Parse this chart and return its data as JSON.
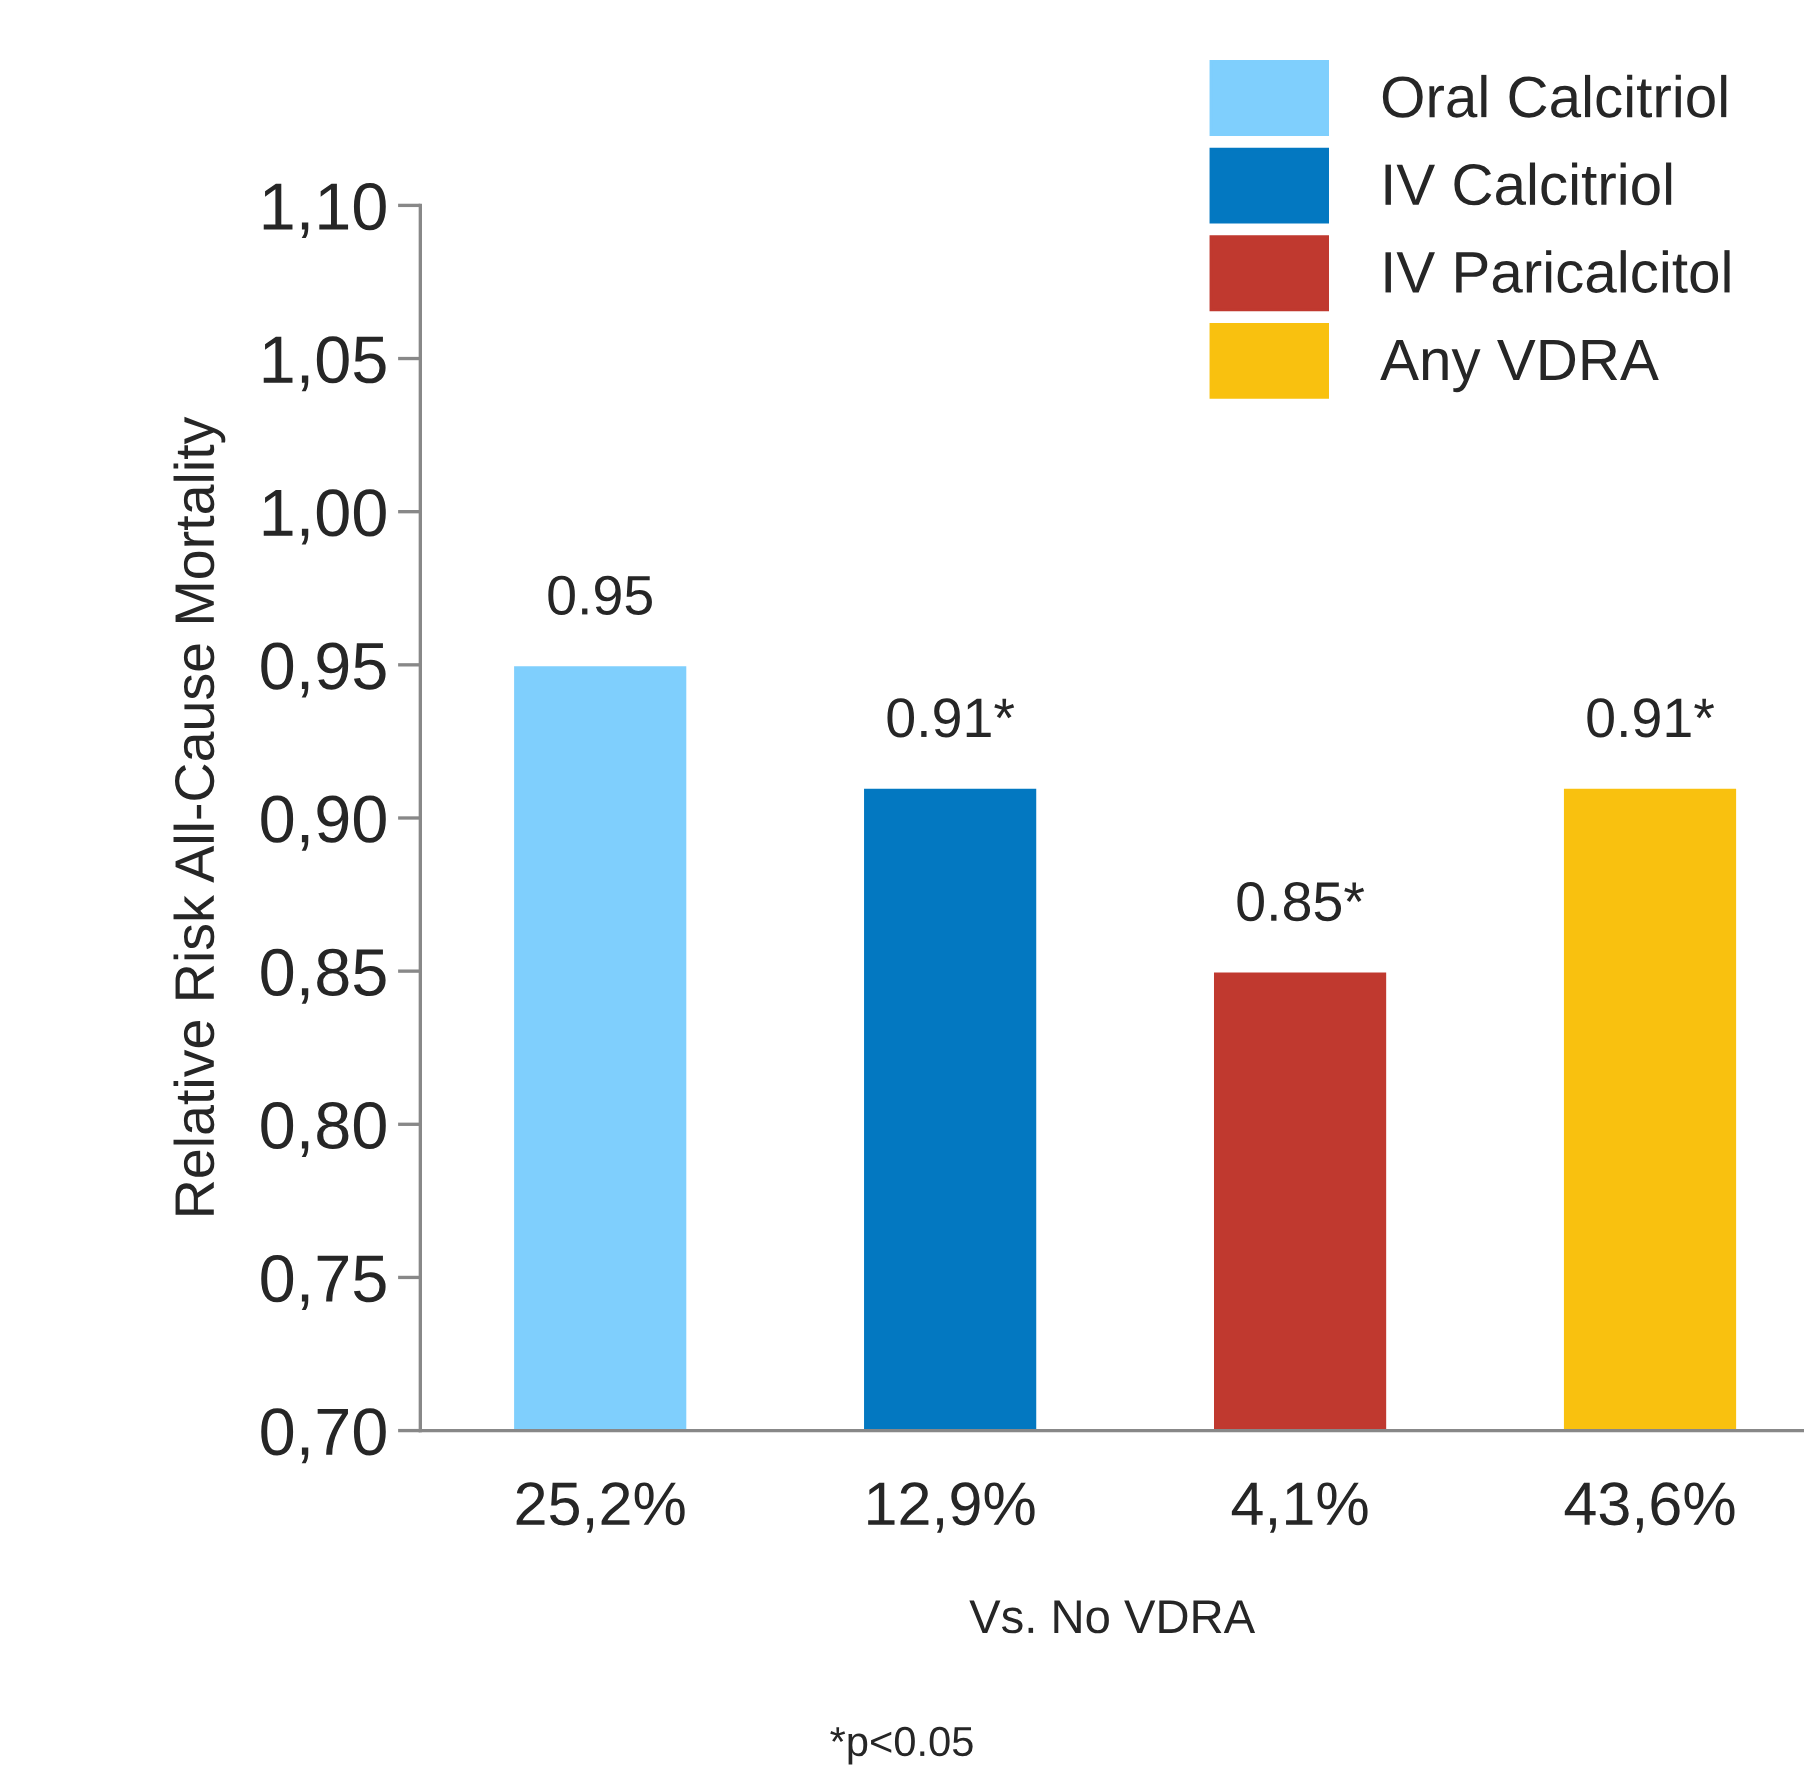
{
  "chart_data": {
    "type": "bar",
    "categories": [
      "25,2%",
      "12,9%",
      "4,1%",
      "43,6%"
    ],
    "series": [
      {
        "name": "Oral Calcitriol",
        "color": "#7fcffd",
        "values": [
          0.95,
          null,
          null,
          null
        ],
        "value_labels": [
          "0.95",
          null,
          null,
          null
        ]
      },
      {
        "name": "IV Calcitriol",
        "color": "#0378c1",
        "values": [
          null,
          0.91,
          null,
          null
        ],
        "value_labels": [
          null,
          "0.91*",
          null,
          null
        ]
      },
      {
        "name": "IV Paricalcitol",
        "color": "#c0392f",
        "values": [
          null,
          null,
          0.85,
          null
        ],
        "value_labels": [
          null,
          null,
          "0.85*",
          null
        ]
      },
      {
        "name": "Any VDRA",
        "color": "#f9c10f",
        "values": [
          null,
          null,
          null,
          0.91
        ],
        "value_labels": [
          null,
          null,
          null,
          "0.91*"
        ]
      }
    ],
    "ylabel": "Relative Risk All-Cause Mortality",
    "xlabel": "Vs. No VDRA",
    "annotations": [
      "*p<0.05"
    ],
    "ylim": [
      0.7,
      1.1
    ],
    "yticks": [
      {
        "value": 0.7,
        "label": "0,70"
      },
      {
        "value": 0.75,
        "label": "0,75"
      },
      {
        "value": 0.8,
        "label": "0,80"
      },
      {
        "value": 0.85,
        "label": "0,85"
      },
      {
        "value": 0.9,
        "label": "0,90"
      },
      {
        "value": 0.95,
        "label": "0,95"
      },
      {
        "value": 1.0,
        "label": "1,00"
      },
      {
        "value": 1.05,
        "label": "1,05"
      },
      {
        "value": 1.1,
        "label": "1,10"
      }
    ],
    "grid": false,
    "legend": "top right"
  }
}
